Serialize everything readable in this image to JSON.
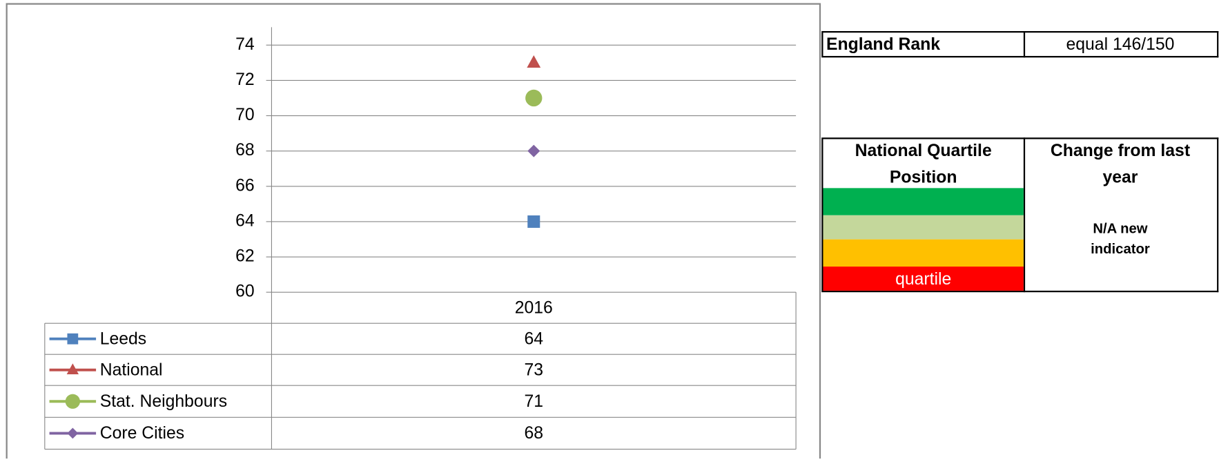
{
  "chart_data": {
    "type": "scatter",
    "categories": [
      "2016"
    ],
    "series": [
      {
        "name": "Leeds",
        "color": "#4f81bd",
        "marker": "square",
        "values": [
          64
        ]
      },
      {
        "name": "National",
        "color": "#c0504d",
        "marker": "triangle",
        "values": [
          73
        ]
      },
      {
        "name": "Stat. Neighbours",
        "color": "#9bbb59",
        "marker": "circle",
        "values": [
          71
        ]
      },
      {
        "name": "Core Cities",
        "color": "#8064a2",
        "marker": "diamond",
        "values": [
          68
        ]
      }
    ],
    "ylim": [
      60,
      74
    ],
    "yticks": [
      60,
      62,
      64,
      66,
      68,
      70,
      72,
      74
    ],
    "grid": true,
    "data_table": true
  },
  "rank_table": {
    "label": "England Rank",
    "value": "equal 146/150"
  },
  "quartile_table": {
    "headers": [
      "National Quartile Position",
      "Change from last year"
    ],
    "quartile_colors": [
      "#00b050",
      "#c4d79b",
      "#ffc000",
      "#ff0000"
    ],
    "quartile_label": "quartile",
    "change": "N/A new indicator"
  }
}
